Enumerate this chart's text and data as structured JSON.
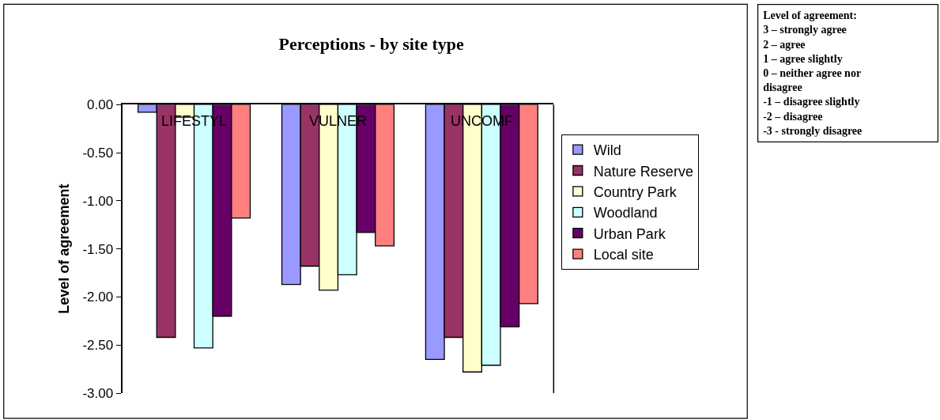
{
  "chart_data": {
    "type": "bar",
    "title": "Perceptions - by site type",
    "ylabel": "Level of agreement",
    "categories": [
      "LIFESTYL",
      "VULNER",
      "UNCOMF"
    ],
    "series": [
      {
        "name": "Wild",
        "color": "#9999ff",
        "values": [
          -0.08,
          -1.87,
          -2.65
        ]
      },
      {
        "name": "Nature Reserve",
        "color": "#993366",
        "values": [
          -2.42,
          -1.68,
          -2.42
        ]
      },
      {
        "name": "Country Park",
        "color": "#ffffcc",
        "values": [
          -0.13,
          -1.93,
          -2.78
        ]
      },
      {
        "name": "Woodland",
        "color": "#ccffff",
        "values": [
          -2.53,
          -1.77,
          -2.71
        ]
      },
      {
        "name": "Urban Park",
        "color": "#660066",
        "values": [
          -2.2,
          -1.33,
          -2.31
        ]
      },
      {
        "name": "Local site",
        "color": "#ff8080",
        "values": [
          -1.18,
          -1.47,
          -2.07
        ]
      }
    ],
    "ylim": [
      -3,
      0
    ],
    "yticks": [
      {
        "value": 0,
        "label": "0.00"
      },
      {
        "value": -0.5,
        "label": "-0.50"
      },
      {
        "value": -1,
        "label": "-1.00"
      },
      {
        "value": -1.5,
        "label": "-1.50"
      },
      {
        "value": -2,
        "label": "-2.00"
      },
      {
        "value": -2.5,
        "label": "-2.50"
      },
      {
        "value": -3,
        "label": "-3.00"
      }
    ],
    "legend": "right",
    "annotations": [
      "Level of agreement:\n3 – strongly agree\n2 – agree\n1 – agree slightly\n0 – neither agree nor\ndisagree\n-1 – disagree slightly\n-2 – disagree\n-3 - strongly disagree"
    ]
  }
}
